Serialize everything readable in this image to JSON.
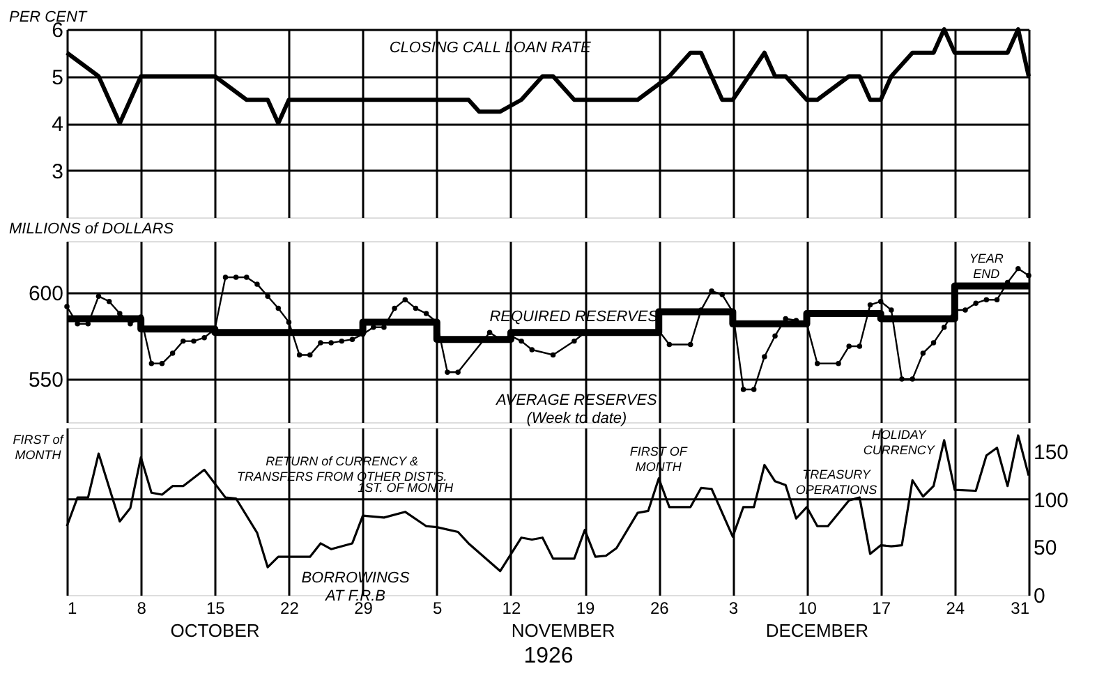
{
  "chart_data": [
    {
      "type": "line",
      "ylabel": "PER CENT",
      "xlim": [
        "1926-10-01",
        "1926-12-31"
      ],
      "xticks": [
        "1926-10-01",
        "1926-10-08",
        "1926-10-15",
        "1926-10-22",
        "1926-10-29",
        "1926-11-05",
        "1926-11-12",
        "1926-11-19",
        "1926-11-26",
        "1926-12-03",
        "1926-12-10",
        "1926-12-17",
        "1926-12-24",
        "1926-12-31"
      ],
      "ylim": [
        2,
        6
      ],
      "yticks": [
        3,
        4,
        5,
        6
      ],
      "grid": true,
      "tick_labels": "y",
      "series": [
        {
          "name": "CLOSING CALL LOAN RATE",
          "color": "#000000",
          "x": [
            "1926-10-01",
            "1926-10-04",
            "1926-10-06",
            "1926-10-08",
            "1926-10-15",
            "1926-10-18",
            "1926-10-20",
            "1926-10-21",
            "1926-10-22",
            "1926-11-08",
            "1926-11-09",
            "1926-11-11",
            "1926-11-13",
            "1926-11-15",
            "1926-11-16",
            "1926-11-18",
            "1926-11-24",
            "1926-11-27",
            "1926-11-29",
            "1926-11-30",
            "1926-12-02",
            "1926-12-03",
            "1926-12-06",
            "1926-12-07",
            "1926-12-08",
            "1926-12-10",
            "1926-12-11",
            "1926-12-14",
            "1926-12-15",
            "1926-12-16",
            "1926-12-17",
            "1926-12-18",
            "1926-12-20",
            "1926-12-22",
            "1926-12-23",
            "1926-12-24",
            "1926-12-29",
            "1926-12-30",
            "1926-12-31"
          ],
          "values": [
            5.5,
            5.0,
            4.0,
            5.0,
            5.0,
            4.5,
            4.5,
            4.0,
            4.5,
            4.5,
            4.25,
            4.25,
            4.5,
            5.0,
            5.0,
            4.5,
            4.5,
            5.0,
            5.5,
            5.5,
            4.5,
            4.5,
            5.5,
            5.0,
            5.0,
            4.5,
            4.5,
            5.0,
            5.0,
            4.5,
            4.5,
            5.0,
            5.5,
            5.5,
            6.0,
            5.5,
            5.5,
            6.0,
            5.0
          ]
        }
      ]
    },
    {
      "type": "line",
      "ylabel": "MILLIONS of DOLLARS",
      "xlim": [
        "1926-10-01",
        "1926-12-31"
      ],
      "xticks": [
        "1926-10-01",
        "1926-10-08",
        "1926-10-15",
        "1926-10-22",
        "1926-10-29",
        "1926-11-05",
        "1926-11-12",
        "1926-11-19",
        "1926-11-26",
        "1926-12-03",
        "1926-12-10",
        "1926-12-17",
        "1926-12-24",
        "1926-12-31"
      ],
      "ylim": [
        525,
        630
      ],
      "yticks": [
        550,
        600
      ],
      "grid": true,
      "tick_labels": "y",
      "annotations": [
        "YEAR\nEND"
      ],
      "series": [
        {
          "name": "REQUIRED RESERVES",
          "color": "#000000",
          "type": "step",
          "x": [
            "1926-10-01",
            "1926-10-08",
            "1926-10-15",
            "1926-10-22",
            "1926-10-29",
            "1926-11-05",
            "1926-11-12",
            "1926-11-19",
            "1926-11-26",
            "1926-12-03",
            "1926-12-10",
            "1926-12-17",
            "1926-12-24",
            "1926-12-31"
          ],
          "values": [
            585,
            579,
            577,
            577,
            583,
            573,
            577,
            577,
            589,
            582,
            588,
            585,
            604,
            604
          ]
        },
        {
          "name": "AVERAGE RESERVES\n(Week to date)",
          "color": "#000000",
          "type": "line",
          "marker": "circle",
          "x": [
            "1926-10-01",
            "1926-10-02",
            "1926-10-03",
            "1926-10-04",
            "1926-10-05",
            "1926-10-06",
            "1926-10-07",
            "1926-10-08",
            "1926-10-09",
            "1926-10-10",
            "1926-10-11",
            "1926-10-12",
            "1926-10-13",
            "1926-10-14",
            "1926-10-15",
            "1926-10-16",
            "1926-10-17",
            "1926-10-18",
            "1926-10-19",
            "1926-10-20",
            "1926-10-21",
            "1926-10-22",
            "1926-10-23",
            "1926-10-24",
            "1926-10-25",
            "1926-10-26",
            "1926-10-27",
            "1926-10-28",
            "1926-10-29",
            "1926-10-30",
            "1926-10-31",
            "1926-11-01",
            "1926-11-02",
            "1926-11-03",
            "1926-11-04",
            "1926-11-05",
            "1926-11-06",
            "1926-11-07",
            "1926-11-10",
            "1926-11-11",
            "1926-11-12",
            "1926-11-13",
            "1926-11-14",
            "1926-11-16",
            "1926-11-18",
            "1926-11-19",
            "1926-11-22",
            "1926-11-24",
            "1926-11-26",
            "1926-11-27",
            "1926-11-29",
            "1926-11-30",
            "1926-12-01",
            "1926-12-02",
            "1926-12-03",
            "1926-12-04",
            "1926-12-05",
            "1926-12-06",
            "1926-12-07",
            "1926-12-08",
            "1926-12-09",
            "1926-12-10",
            "1926-12-11",
            "1926-12-13",
            "1926-12-14",
            "1926-12-15",
            "1926-12-16",
            "1926-12-17",
            "1926-12-18",
            "1926-12-19",
            "1926-12-20",
            "1926-12-21",
            "1926-12-22",
            "1926-12-23",
            "1926-12-24",
            "1926-12-25",
            "1926-12-26",
            "1926-12-27",
            "1926-12-28",
            "1926-12-29",
            "1926-12-30",
            "1926-12-31"
          ],
          "values": [
            592,
            582,
            582,
            598,
            595,
            588,
            582,
            586,
            559,
            559,
            565,
            572,
            572,
            574,
            579,
            609,
            609,
            609,
            605,
            598,
            591,
            583,
            564,
            564,
            571,
            571,
            572,
            573,
            576,
            580,
            580,
            591,
            596,
            591,
            588,
            583,
            554,
            554,
            577,
            573,
            575,
            572,
            567,
            564,
            572,
            577,
            577,
            577,
            578,
            570,
            570,
            590,
            601,
            599,
            589,
            544,
            544,
            563,
            575,
            585,
            584,
            582,
            559,
            559,
            569,
            569,
            593,
            595,
            590,
            550,
            550,
            565,
            571,
            580,
            590,
            590,
            594,
            596,
            596,
            606,
            614,
            610
          ]
        }
      ]
    },
    {
      "type": "line",
      "xlabel": "1926",
      "xlim": [
        "1926-10-01",
        "1926-12-31"
      ],
      "xticks": [
        {
          "value": "1926-10-01",
          "label": "1"
        },
        {
          "value": "1926-10-08",
          "label": "8"
        },
        {
          "value": "1926-10-15",
          "label": "15"
        },
        {
          "value": "1926-10-22",
          "label": "22"
        },
        {
          "value": "1926-10-29",
          "label": "29"
        },
        {
          "value": "1926-11-05",
          "label": "5"
        },
        {
          "value": "1926-11-12",
          "label": "12"
        },
        {
          "value": "1926-11-19",
          "label": "19"
        },
        {
          "value": "1926-11-26",
          "label": "26"
        },
        {
          "value": "1926-12-03",
          "label": "3"
        },
        {
          "value": "1926-12-10",
          "label": "10"
        },
        {
          "value": "1926-12-17",
          "label": "17"
        },
        {
          "value": "1926-12-24",
          "label": "24"
        },
        {
          "value": "1926-12-31",
          "label": "31"
        }
      ],
      "y2lim": [
        0,
        175
      ],
      "y2ticks": [
        0,
        50,
        100,
        150
      ],
      "grid": "x",
      "ref_lines": [
        {
          "axis": "y2",
          "value": 100
        }
      ],
      "annotations": [
        "FIRST of\nMONTH",
        "RETURN of CURRENCY &\nTRANSFERS FROM OTHER DIST'S.",
        "1ST. OF MONTH",
        "FIRST OF\nMONTH",
        "TREASURY\nOPERATIONS",
        "HOLIDAY\nCURRENCY",
        "OCTOBER",
        "NOVEMBER",
        "DECEMBER"
      ],
      "series": [
        {
          "name": "BORROWINGS\nAT F.R.B",
          "color": "#000000",
          "axis": "y2",
          "x": [
            "1926-10-01",
            "1926-10-02",
            "1926-10-03",
            "1926-10-04",
            "1926-10-06",
            "1926-10-07",
            "1926-10-08",
            "1926-10-09",
            "1926-10-10",
            "1926-10-11",
            "1926-10-12",
            "1926-10-14",
            "1926-10-16",
            "1926-10-17",
            "1926-10-19",
            "1926-10-20",
            "1926-10-21",
            "1926-10-24",
            "1926-10-25",
            "1926-10-26",
            "1926-10-28",
            "1926-10-29",
            "1926-10-31",
            "1926-11-02",
            "1926-11-04",
            "1926-11-05",
            "1926-11-07",
            "1926-11-08",
            "1926-11-11",
            "1926-11-13",
            "1926-11-14",
            "1926-11-15",
            "1926-11-16",
            "1926-11-18",
            "1926-11-19",
            "1926-11-20",
            "1926-11-21",
            "1926-11-22",
            "1926-11-24",
            "1926-11-25",
            "1926-11-26",
            "1926-11-27",
            "1926-11-29",
            "1926-11-30",
            "1926-12-01",
            "1926-12-03",
            "1926-12-04",
            "1926-12-05",
            "1926-12-06",
            "1926-12-07",
            "1926-12-08",
            "1926-12-09",
            "1926-12-10",
            "1926-12-11",
            "1926-12-12",
            "1926-12-14",
            "1926-12-15",
            "1926-12-16",
            "1926-12-17",
            "1926-12-18",
            "1926-12-19",
            "1926-12-20",
            "1926-12-21",
            "1926-12-22",
            "1926-12-23",
            "1926-12-24",
            "1926-12-26",
            "1926-12-27",
            "1926-12-28",
            "1926-12-29",
            "1926-12-30",
            "1926-12-31"
          ],
          "values": [
            72,
            102,
            102,
            148,
            77,
            91,
            144,
            107,
            105,
            114,
            114,
            131,
            102,
            101,
            65,
            29,
            40,
            40,
            54,
            48,
            54,
            83,
            81,
            87,
            72,
            71,
            66,
            54,
            25,
            60,
            58,
            60,
            38,
            38,
            68,
            40,
            41,
            49,
            86,
            88,
            122,
            92,
            92,
            112,
            111,
            61,
            92,
            92,
            136,
            119,
            115,
            80,
            92,
            72,
            72,
            99,
            102,
            43,
            52,
            51,
            52,
            120,
            103,
            114,
            162,
            110,
            109,
            146,
            154,
            114,
            167,
            125
          ]
        }
      ]
    }
  ]
}
